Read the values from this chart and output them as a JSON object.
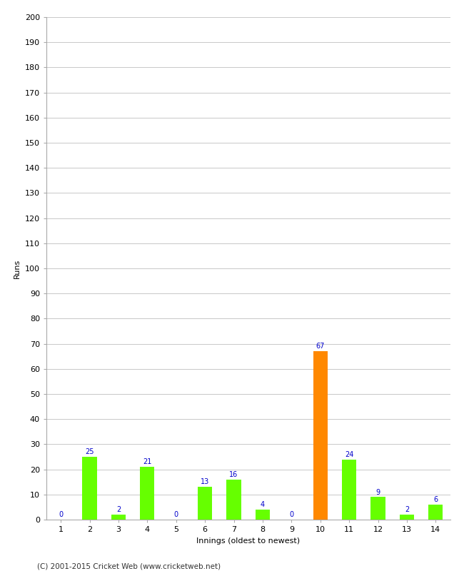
{
  "innings": [
    1,
    2,
    3,
    4,
    5,
    6,
    7,
    8,
    9,
    10,
    11,
    12,
    13,
    14
  ],
  "runs": [
    0,
    25,
    2,
    21,
    0,
    13,
    16,
    4,
    0,
    67,
    24,
    9,
    2,
    6
  ],
  "bar_colors": [
    "#66ff00",
    "#66ff00",
    "#66ff00",
    "#66ff00",
    "#66ff00",
    "#66ff00",
    "#66ff00",
    "#66ff00",
    "#66ff00",
    "#ff8800",
    "#66ff00",
    "#66ff00",
    "#66ff00",
    "#66ff00"
  ],
  "xlabel": "Innings (oldest to newest)",
  "ylabel": "Runs",
  "ylim": [
    0,
    200
  ],
  "yticks": [
    0,
    10,
    20,
    30,
    40,
    50,
    60,
    70,
    80,
    90,
    100,
    110,
    120,
    130,
    140,
    150,
    160,
    170,
    180,
    190,
    200
  ],
  "label_color": "#0000cc",
  "label_fontsize": 7,
  "axis_fontsize": 8,
  "footer": "(C) 2001-2015 Cricket Web (www.cricketweb.net)",
  "footer_fontsize": 7.5,
  "background_color": "#ffffff",
  "grid_color": "#c8c8c8",
  "bar_width": 0.5
}
